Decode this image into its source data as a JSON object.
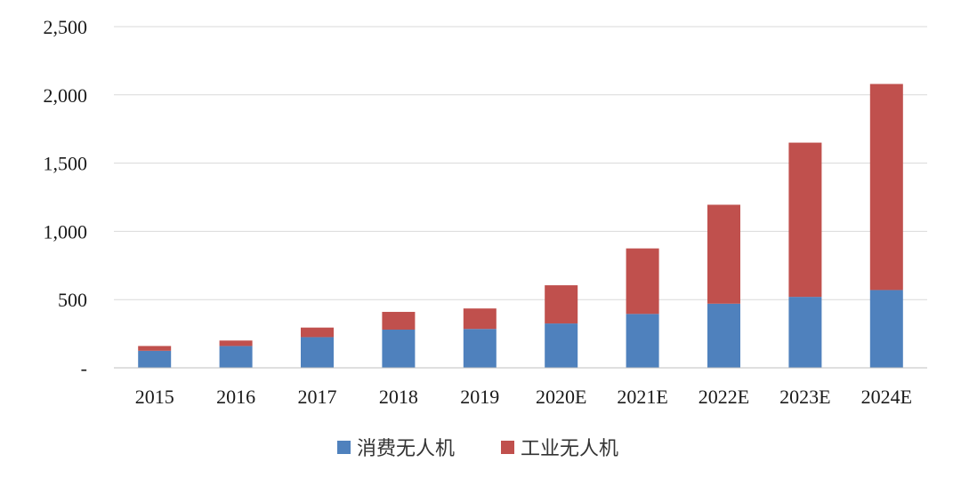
{
  "chart_data": {
    "type": "bar",
    "stacked": true,
    "categories": [
      "2015",
      "2016",
      "2017",
      "2018",
      "2019",
      "2020E",
      "2021E",
      "2022E",
      "2023E",
      "2024E"
    ],
    "series": [
      {
        "name": "消费无人机",
        "color": "#4f81bd",
        "values": [
          125,
          160,
          225,
          280,
          285,
          325,
          395,
          470,
          520,
          570
        ]
      },
      {
        "name": "工业无人机",
        "color": "#c0504d",
        "values": [
          35,
          40,
          70,
          130,
          150,
          280,
          480,
          725,
          1130,
          1510
        ]
      }
    ],
    "yticks": [
      {
        "value": 0,
        "label": "-"
      },
      {
        "value": 500,
        "label": "500"
      },
      {
        "value": 1000,
        "label": "1,000"
      },
      {
        "value": 1500,
        "label": "1,500"
      },
      {
        "value": 2000,
        "label": "2,000"
      },
      {
        "value": 2500,
        "label": "2,500"
      }
    ],
    "ylim": [
      0,
      2500
    ],
    "grid": true,
    "legend_position": "bottom-center",
    "title": "",
    "xlabel": "",
    "ylabel": ""
  }
}
